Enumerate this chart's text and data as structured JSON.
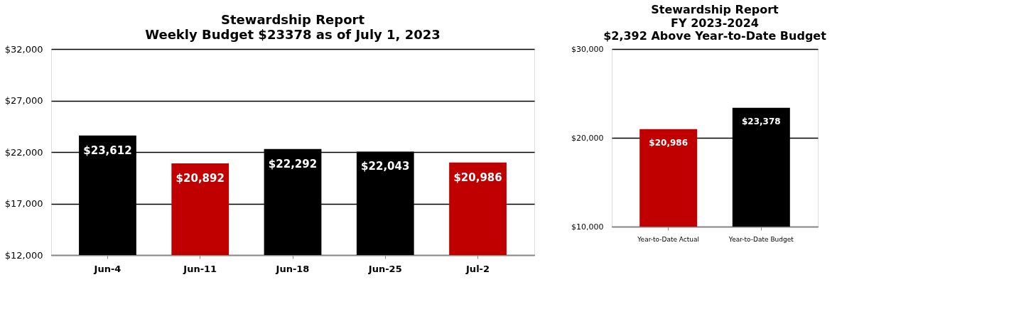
{
  "chart_data": [
    {
      "type": "bar",
      "title": "Stewardship Report",
      "subtitle": "Weekly Budget $23378 as of July 1, 2023",
      "categories": [
        "Jun-4",
        "Jun-11",
        "Jun-18",
        "Jun-25",
        "Jul-2"
      ],
      "values": [
        23612,
        20892,
        22292,
        22043,
        20986
      ],
      "colors": [
        "#000000",
        "#c00000",
        "#000000",
        "#000000",
        "#c00000"
      ],
      "value_labels": [
        "$23,612",
        "$20,892",
        "$22,292",
        "$22,043",
        "$20,986"
      ],
      "ylim": [
        12000,
        32000
      ],
      "yticks": [
        {
          "value": 12000,
          "label": "$12,000"
        },
        {
          "value": 17000,
          "label": "$17,000"
        },
        {
          "value": 22000,
          "label": "$22,000"
        },
        {
          "value": 27000,
          "label": "$27,000"
        },
        {
          "value": 32000,
          "label": "$32,000"
        }
      ],
      "grid": "y",
      "legend": false
    },
    {
      "type": "bar",
      "title": "Stewardship Report",
      "subtitle": "FY 2023-2024\n$2,392 Above Year-to-Date Budget",
      "categories": [
        "Year-to-Date Actual",
        "Year-to-Date Budget"
      ],
      "values": [
        20986,
        23378
      ],
      "colors": [
        "#c00000",
        "#000000"
      ],
      "value_labels": [
        "$20,986",
        "$23,378"
      ],
      "ylim": [
        10000,
        30000
      ],
      "yticks": [
        {
          "value": 10000,
          "label": "$10,000"
        },
        {
          "value": 20000,
          "label": "$20,000"
        },
        {
          "value": 30000,
          "label": "$30,000"
        }
      ],
      "grid": "y",
      "legend": false
    }
  ]
}
